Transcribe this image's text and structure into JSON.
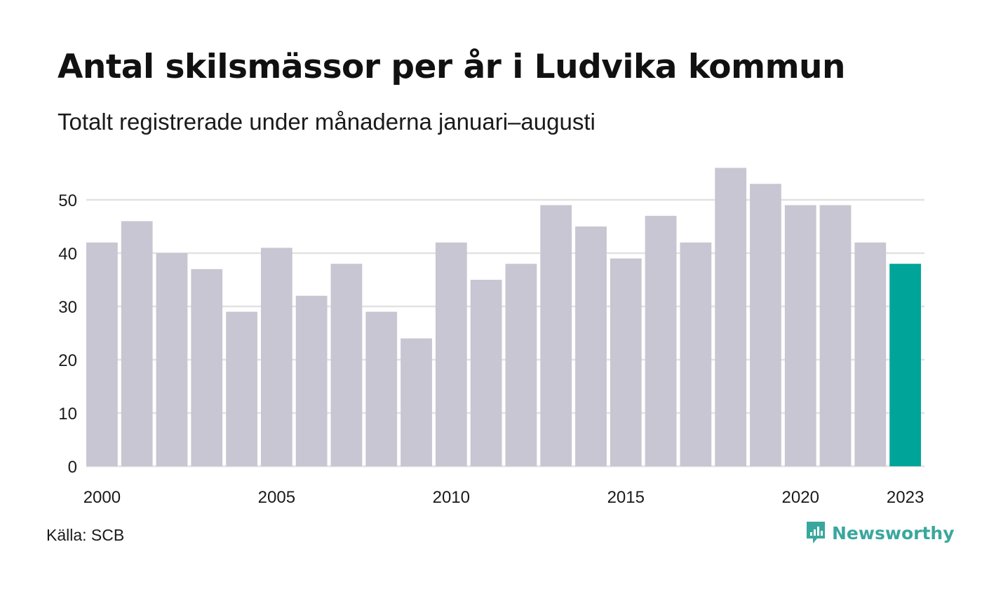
{
  "header": {
    "title": "Antal skilsmässor per år i Ludvika kommun",
    "subtitle": "Totalt registrerade under månaderna januari–augusti"
  },
  "footer": {
    "source": "Källa: SCB",
    "brand": "Newsworthy"
  },
  "colors": {
    "bar": "#c8c6d2",
    "highlight": "#00a499",
    "grid": "#e2e2e2",
    "brand": "#3aa79e"
  },
  "chart_data": {
    "type": "bar",
    "categories": [
      "2000",
      "2001",
      "2002",
      "2003",
      "2004",
      "2005",
      "2006",
      "2007",
      "2008",
      "2009",
      "2010",
      "2011",
      "2012",
      "2013",
      "2014",
      "2015",
      "2016",
      "2017",
      "2018",
      "2019",
      "2020",
      "2021",
      "2022",
      "2023"
    ],
    "values": [
      42,
      46,
      40,
      37,
      29,
      41,
      32,
      38,
      29,
      24,
      42,
      35,
      38,
      49,
      45,
      39,
      47,
      42,
      56,
      53,
      49,
      49,
      42,
      38
    ],
    "x_tick_labels": [
      "2000",
      "2005",
      "2010",
      "2015",
      "2020",
      "2023"
    ],
    "y_ticks": [
      0,
      10,
      20,
      30,
      40,
      50
    ],
    "ylim": [
      0,
      56
    ],
    "highlight_category": "2023",
    "grid": true,
    "legend": "none"
  }
}
